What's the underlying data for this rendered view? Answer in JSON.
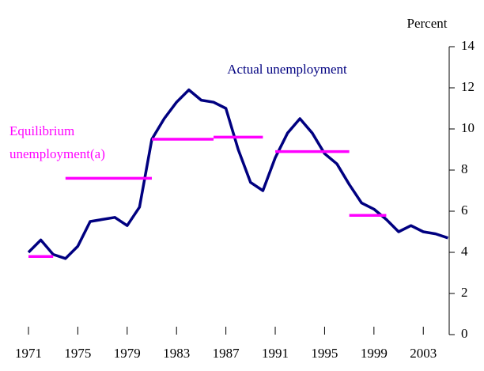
{
  "chart_data": {
    "type": "line",
    "y_axis_label": "Percent",
    "x": [
      1971,
      1972,
      1973,
      1974,
      1975,
      1976,
      1977,
      1978,
      1979,
      1980,
      1981,
      1982,
      1983,
      1984,
      1985,
      1986,
      1987,
      1988,
      1989,
      1990,
      1991,
      1992,
      1993,
      1994,
      1995,
      1996,
      1997,
      1998,
      1999,
      2000,
      2001,
      2002,
      2003,
      2004,
      2005
    ],
    "series": [
      {
        "name": "Actual unemployment",
        "color": "#000080",
        "values": [
          4.0,
          4.6,
          3.9,
          3.7,
          4.3,
          5.5,
          5.6,
          5.7,
          5.3,
          6.2,
          9.5,
          10.5,
          11.3,
          11.9,
          11.4,
          11.3,
          11.0,
          9.0,
          7.4,
          7.0,
          8.6,
          9.8,
          10.5,
          9.8,
          8.8,
          8.3,
          7.3,
          6.4,
          6.1,
          5.6,
          5.0,
          5.3,
          5.0,
          4.9,
          4.7
        ]
      }
    ],
    "levels": {
      "name": "Equilibrium unemployment(a)",
      "color": "#ff00ff",
      "segments": [
        {
          "x": [
            1971,
            1973
          ],
          "value": 3.8
        },
        {
          "x": [
            1974,
            1981
          ],
          "value": 7.6
        },
        {
          "x": [
            1981,
            1986
          ],
          "value": 9.5
        },
        {
          "x": [
            1986,
            1990
          ],
          "value": 9.6
        },
        {
          "x": [
            1991,
            1997
          ],
          "value": 8.9
        },
        {
          "x": [
            1997,
            2000
          ],
          "value": 5.8
        }
      ]
    },
    "xlim": [
      1971,
      2005.1
    ],
    "xticks": [
      1971,
      1975,
      1979,
      1983,
      1987,
      1991,
      1995,
      1999,
      2003
    ],
    "ylim": [
      0,
      14
    ],
    "yticks": [
      0,
      2,
      4,
      6,
      8,
      10,
      12,
      14
    ],
    "grid": false
  }
}
